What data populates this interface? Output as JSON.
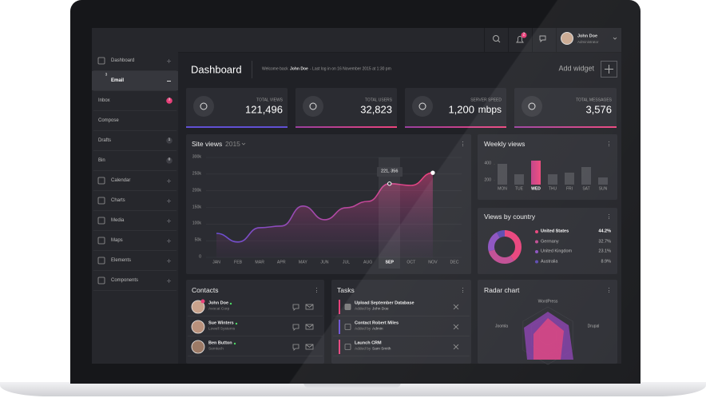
{
  "topbar": {
    "notifications": 2,
    "user_name": "John Doe",
    "user_role": "Administrator"
  },
  "sidebar": [
    {
      "label": "Dashboard"
    },
    {
      "label": "Email",
      "badge": 3
    },
    {
      "label": "Inbox",
      "badge": 3
    },
    {
      "label": "Compose"
    },
    {
      "label": "Drafts",
      "badge": 1
    },
    {
      "label": "Bin",
      "badge": 0
    },
    {
      "label": "Calendar"
    },
    {
      "label": "Charts"
    },
    {
      "label": "Media"
    },
    {
      "label": "Maps"
    },
    {
      "label": "Elements"
    },
    {
      "label": "Components"
    }
  ],
  "header": {
    "title": "Dashboard",
    "welcome": "Welcome back",
    "user": "John Doe",
    "last_login": "- Last log in on 16 November 2015 at 1:30 pm",
    "add_widget": "Add widget"
  },
  "stats": [
    {
      "label": "TOTAL VIEWS",
      "value": "121,496"
    },
    {
      "label": "TOTAL USERS",
      "value": "32,823"
    },
    {
      "label": "SERVER SPEED",
      "value": "1,200",
      "unit": "mbps"
    },
    {
      "label": "TOTAL MESSAGES",
      "value": "3,576"
    }
  ],
  "site_views": {
    "type": "line",
    "title": "Site views",
    "year": "2015",
    "categories": [
      "JAN",
      "FEB",
      "MAR",
      "APR",
      "MAY",
      "JUN",
      "JUL",
      "AUG",
      "SEP",
      "OCT",
      "NOV",
      "DEC"
    ],
    "values": [
      72000,
      46000,
      89000,
      94000,
      154000,
      113000,
      149000,
      168000,
      221356,
      216000,
      254000,
      null
    ],
    "tooltip": "221, 356",
    "ylim": [
      0,
      300000
    ],
    "yticks": [
      0,
      {
        "value": 50000,
        "label": "50k"
      },
      {
        "value": 100000,
        "label": "100k"
      },
      {
        "value": 150000,
        "label": "150k"
      },
      {
        "value": 200000,
        "label": "200k"
      },
      {
        "value": 250000,
        "label": "250k"
      },
      {
        "value": 300000,
        "label": "300k"
      }
    ],
    "grid": true
  },
  "weekly_views": {
    "type": "bar",
    "title": "Weekly views",
    "categories": [
      "MON",
      "TUE",
      "WED",
      "THU",
      "FRI",
      "SAT",
      "SUN"
    ],
    "values": [
      403,
      276,
      442,
      276,
      296,
      364,
      237
    ],
    "ylim": [
      150,
      500
    ],
    "yticks": [
      200,
      400
    ]
  },
  "views_by_country": {
    "type": "donut",
    "title": "Views by country",
    "categories": [
      "United States",
      "Germany",
      "United Kingdom",
      "Australia"
    ],
    "values": [
      44.2,
      32.7,
      23.1,
      8.9
    ],
    "value_labels": [
      "44.2%",
      "32.7%",
      "23.1%",
      "8.9%"
    ],
    "colors": [
      "#e8417a",
      "#c04a92",
      "#8a4fbf",
      "#5b48b0"
    ]
  },
  "contacts": {
    "title": "Contacts",
    "items": [
      {
        "name": "John Doe",
        "company": "Avocat Corp"
      },
      {
        "name": "Sue Winters",
        "company": "Lowell Systems"
      },
      {
        "name": "Ben Button",
        "company": "Semtech"
      }
    ]
  },
  "tasks": {
    "title": "Tasks",
    "items": [
      {
        "title": "Upload September Database",
        "added_by": "Added by",
        "who": "John Doe"
      },
      {
        "title": "Contact Robert Miles",
        "added_by": "Added by",
        "who": "Admin"
      },
      {
        "title": "Launch CRM",
        "added_by": "Added by",
        "who": "Sam Smith"
      }
    ]
  },
  "radar": {
    "title": "Radar chart",
    "labels": [
      "WordPress",
      "Joomla",
      "Drupal"
    ]
  }
}
